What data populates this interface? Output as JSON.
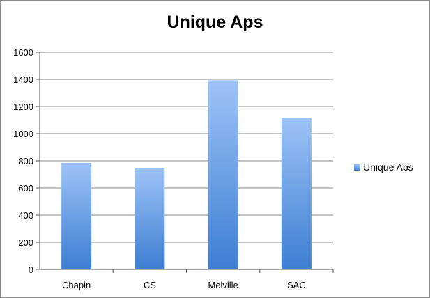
{
  "chart_data": {
    "type": "bar",
    "title": "Unique Aps",
    "categories": [
      "Chapin",
      "CS",
      "Melville",
      "SAC"
    ],
    "series": [
      {
        "name": "Unique Aps",
        "values": [
          785,
          748,
          1393,
          1117
        ]
      }
    ],
    "ylim": [
      0,
      1600
    ],
    "yticks": [
      0,
      200,
      400,
      600,
      800,
      1000,
      1200,
      1400,
      1600
    ],
    "grid": true,
    "legend_position": "right",
    "colors": {
      "bar_top": "#9dc3f7",
      "bar_bottom": "#3d7ed2",
      "grid": "#8a8a8a"
    }
  }
}
